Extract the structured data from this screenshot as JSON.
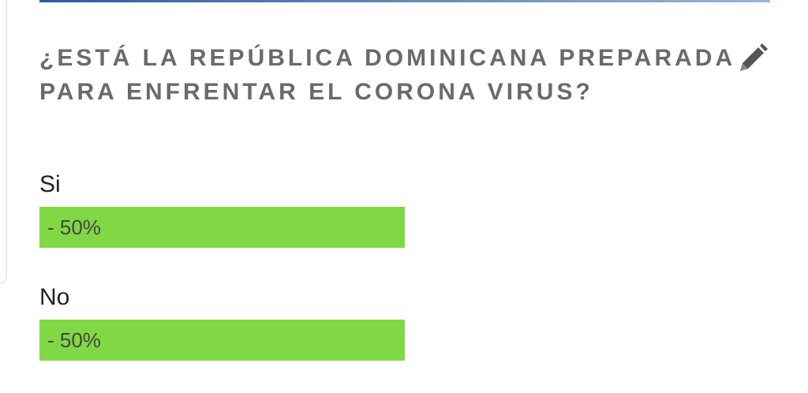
{
  "poll": {
    "question": "¿ESTÁ LA REPÚBLICA DOMINICANA PREPARADA PARA ENFRENTAR EL CORONA VIRUS?",
    "color": "#80d845",
    "options": [
      {
        "label": "Si",
        "value": 50,
        "value_label": "- 50%"
      },
      {
        "label": "No",
        "value": 50,
        "value_label": "- 50%"
      }
    ]
  }
}
